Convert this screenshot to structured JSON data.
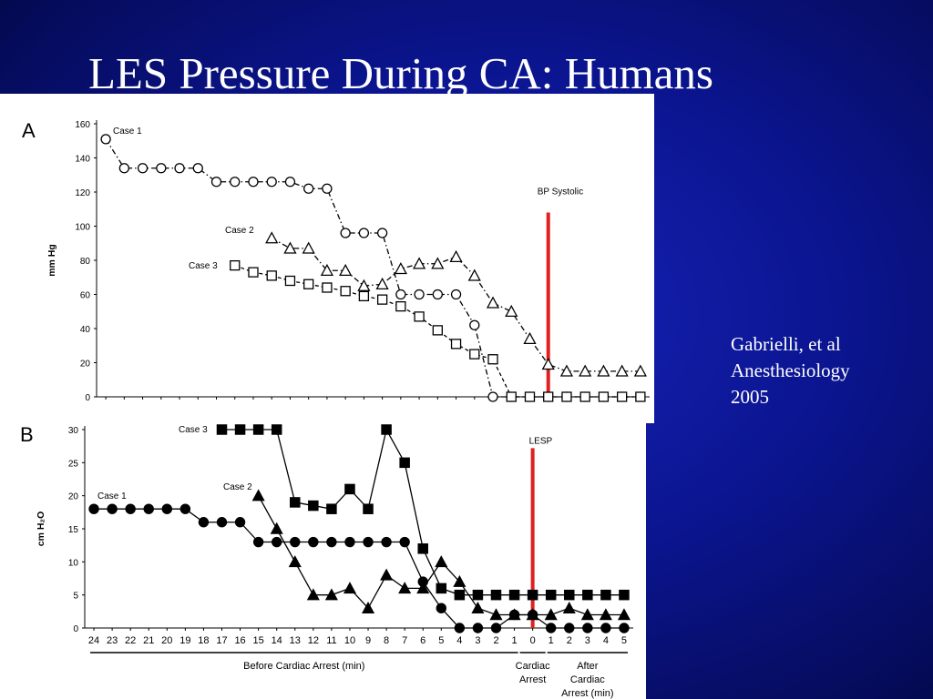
{
  "title": "LES Pressure During CA: Humans",
  "citation": [
    "Gabrielli, et al",
    "Anesthesiology",
    "2005"
  ],
  "chart_data": [
    {
      "type": "line",
      "panel_letter": "A",
      "ylabel": "mm Hg",
      "ylim": [
        0,
        160
      ],
      "yticks": [
        0,
        20,
        40,
        60,
        80,
        100,
        120,
        140,
        160
      ],
      "xlim": [
        -24.5,
        5.5
      ],
      "grid": false,
      "reference_line": {
        "label": "BP Systolic",
        "x": 0,
        "y_top": 108,
        "color": "#e02020"
      },
      "series": [
        {
          "name": "Case 1",
          "marker": "open-circle",
          "line": "dash-dot",
          "x": [
            -24,
            -23,
            -22,
            -21,
            -20,
            -19,
            -18,
            -17,
            -16,
            -15,
            -14,
            -13,
            -12,
            -11,
            -10,
            -9,
            -8,
            -7,
            -6,
            -5,
            -4,
            -3,
            -2,
            -1,
            0,
            1,
            2,
            3,
            4,
            5
          ],
          "y": [
            151,
            134,
            134,
            134,
            134,
            134,
            126,
            126,
            126,
            126,
            126,
            122,
            122,
            96,
            96,
            96,
            60,
            60,
            60,
            60,
            42,
            0,
            0,
            0,
            0,
            0,
            0,
            0,
            0,
            0
          ]
        },
        {
          "name": "Case 2",
          "marker": "open-triangle",
          "line": "dash-dot",
          "x": [
            -15,
            -14,
            -13,
            -12,
            -11,
            -10,
            -9,
            -8,
            -7,
            -6,
            -5,
            -4,
            -3,
            -2,
            -1,
            0,
            1,
            2,
            3,
            4,
            5
          ],
          "y": [
            93,
            87,
            87,
            74,
            74,
            65,
            66,
            75,
            78,
            78,
            82,
            71,
            55,
            50,
            34,
            19,
            15,
            15,
            15,
            15,
            15
          ]
        },
        {
          "name": "Case 3",
          "marker": "open-square",
          "line": "dashed",
          "x": [
            -17,
            -16,
            -15,
            -14,
            -13,
            -12,
            -11,
            -10,
            -9,
            -8,
            -7,
            -6,
            -5,
            -4,
            -3,
            -2,
            -1,
            0,
            1,
            2,
            3,
            4,
            5
          ],
          "y": [
            77,
            73,
            71,
            68,
            66,
            64,
            62,
            59,
            57,
            53,
            47,
            39,
            31,
            25,
            22,
            0,
            0,
            0,
            0,
            0,
            0,
            0,
            0
          ]
        }
      ]
    },
    {
      "type": "line",
      "panel_letter": "B",
      "ylabel": "cm H₂O",
      "ylim": [
        0,
        30
      ],
      "yticks": [
        0,
        5,
        10,
        15,
        20,
        25,
        30
      ],
      "xlim": [
        -24.5,
        5.5
      ],
      "xtick_labels": [
        "24",
        "23",
        "22",
        "21",
        "20",
        "19",
        "18",
        "17",
        "16",
        "15",
        "14",
        "13",
        "12",
        "11",
        "10",
        "9",
        "8",
        "7",
        "6",
        "5",
        "4",
        "3",
        "2",
        "1",
        "0",
        "1",
        "2",
        "3",
        "4",
        "5"
      ],
      "grid": false,
      "reference_line": {
        "label": "LESP",
        "x": 0,
        "y_top": 27.2,
        "color": "#e02020"
      },
      "phases": [
        {
          "label": [
            "Before Cardiac Arrest (min)"
          ],
          "from": -24,
          "to": -1
        },
        {
          "label": [
            "Cardiac",
            "Arrest"
          ],
          "from": -0.5,
          "to": 0.5
        },
        {
          "label": [
            "After",
            "Cardiac",
            "Arrest (min)"
          ],
          "from": 1,
          "to": 5
        }
      ],
      "series": [
        {
          "name": "Case 1",
          "marker": "filled-circle",
          "line": "solid",
          "x": [
            -24,
            -23,
            -22,
            -21,
            -20,
            -19,
            -18,
            -17,
            -16,
            -15,
            -14,
            -13,
            -12,
            -11,
            -10,
            -9,
            -8,
            -7,
            -6,
            -5,
            -4,
            -3,
            -2,
            -1,
            0,
            1,
            2,
            3,
            4,
            5
          ],
          "y": [
            18,
            18,
            18,
            18,
            18,
            18,
            16,
            16,
            16,
            13,
            13,
            13,
            13,
            13,
            13,
            13,
            13,
            13,
            7,
            3,
            0,
            0,
            0,
            2,
            2,
            0,
            0,
            0,
            0,
            0
          ]
        },
        {
          "name": "Case 2",
          "marker": "filled-triangle",
          "line": "solid",
          "x": [
            -15,
            -14,
            -13,
            -12,
            -11,
            -10,
            -9,
            -8,
            -7,
            -6,
            -5,
            -4,
            -3,
            -2,
            -1,
            0,
            1,
            2,
            3,
            4,
            5
          ],
          "y": [
            20,
            15,
            10,
            5,
            5,
            6,
            3,
            8,
            6,
            6,
            10,
            7,
            3,
            2,
            2,
            2,
            2,
            3,
            2,
            2,
            2
          ]
        },
        {
          "name": "Case 3",
          "marker": "filled-square",
          "line": "solid",
          "x": [
            -17,
            -16,
            -15,
            -14,
            -13,
            -12,
            -11,
            -10,
            -9,
            -8,
            -7,
            -6,
            -5,
            -4,
            -3,
            -2,
            -1,
            0,
            1,
            2,
            3,
            4,
            5
          ],
          "y": [
            30,
            30,
            30,
            30,
            19,
            18.5,
            18,
            21,
            18,
            30,
            25,
            12,
            6,
            5,
            5,
            5,
            5,
            5,
            5,
            5,
            5,
            5,
            5
          ]
        }
      ]
    }
  ]
}
